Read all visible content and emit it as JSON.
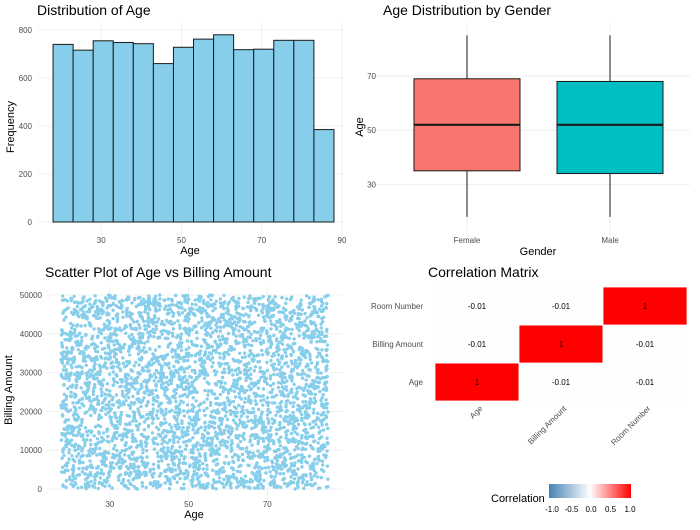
{
  "chart_data": [
    {
      "type": "bar",
      "title": "Distribution of Age",
      "xlabel": "Age",
      "ylabel": "Frequency",
      "bar_color": "#87CEEB",
      "bar_outline": "#1a1a1a",
      "bin_width": 5,
      "bin_edges": [
        18,
        23,
        28,
        33,
        38,
        43,
        48,
        53,
        58,
        63,
        68,
        73,
        78,
        83,
        88
      ],
      "values": [
        740,
        716,
        755,
        748,
        743,
        660,
        728,
        762,
        780,
        718,
        720,
        757,
        757,
        385
      ],
      "xlim": [
        14,
        90
      ],
      "ylim": [
        0,
        800
      ],
      "x_ticks": [
        30,
        50,
        70,
        90
      ],
      "y_ticks": [
        0,
        200,
        400,
        600,
        800
      ],
      "grid": true
    },
    {
      "type": "box",
      "title": "Age Distribution by Gender",
      "xlabel": "Gender",
      "ylabel": "Age",
      "categories": [
        "Female",
        "Male"
      ],
      "boxes": [
        {
          "category": "Female",
          "min": 18,
          "q1": 35,
          "median": 52,
          "q3": 69,
          "max": 85,
          "color": "#F8766D"
        },
        {
          "category": "Male",
          "min": 18,
          "q1": 34,
          "median": 52,
          "q3": 68,
          "max": 85,
          "color": "#00BFC4"
        }
      ],
      "ylim": [
        15,
        87
      ],
      "y_ticks": [
        30,
        50,
        70
      ],
      "grid": true
    },
    {
      "type": "scatter",
      "title": "Scatter Plot of Age vs Billing Amount",
      "xlabel": "Age",
      "ylabel": "Billing Amount",
      "point_color": "#87CEEB",
      "x_range_of_points": [
        18,
        85
      ],
      "y_range_of_points": [
        0,
        50000
      ],
      "xlim": [
        14,
        89
      ],
      "ylim": [
        -500,
        51000
      ],
      "x_ticks": [
        30,
        50,
        70
      ],
      "y_ticks": [
        0,
        10000,
        20000,
        30000,
        40000,
        50000
      ],
      "grid": true
    },
    {
      "type": "heatmap",
      "title": "Correlation Matrix",
      "x_categories": [
        "Age",
        "Billing Amount",
        "Room Number"
      ],
      "y_categories": [
        "Age",
        "Billing Amount",
        "Room Number"
      ],
      "values": [
        [
          1,
          -0.01,
          -0.01
        ],
        [
          -0.01,
          1,
          -0.01
        ],
        [
          -0.01,
          -0.01,
          1
        ]
      ],
      "cell_labels": [
        [
          "1",
          "-0.01",
          "-0.01"
        ],
        [
          "-0.01",
          "1",
          "-0.01"
        ],
        [
          "-0.01",
          "-0.01",
          "1"
        ]
      ],
      "color_low": "#4682B4",
      "color_mid": "#ffffff",
      "color_high": "#FF0000",
      "legend_title": "Correlation",
      "legend_ticks": [
        "-1.0",
        "-0.5",
        "0.0",
        "0.5",
        "1.0"
      ],
      "legend_placement": "bottom"
    }
  ]
}
